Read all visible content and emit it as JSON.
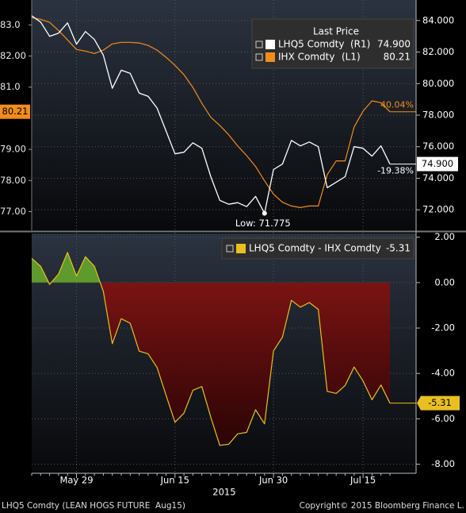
{
  "chart_data": [
    {
      "type": "line",
      "title": "Last Price",
      "categories": [
        null,
        null,
        null,
        null,
        null,
        "May 29",
        null,
        null,
        null,
        null,
        null,
        null,
        null,
        null,
        null,
        null,
        "Jun 15",
        null,
        null,
        null,
        null,
        null,
        null,
        null,
        null,
        null,
        null,
        "Jun 30",
        null,
        null,
        null,
        null,
        null,
        null,
        null,
        null,
        null,
        "Jul 15",
        null,
        null,
        null
      ],
      "series": [
        {
          "name": "LHQ5 Comdty",
          "legend_tag": "(R1)",
          "last_label": "74.900",
          "change_label": "-19.38%",
          "color": "#ffffff",
          "axis": "y2",
          "values": [
            84.3,
            83.9,
            83.0,
            83.2,
            83.85,
            82.5,
            83.3,
            82.8,
            81.8,
            79.7,
            80.85,
            80.65,
            79.4,
            79.2,
            78.45,
            77.0,
            75.55,
            75.65,
            76.25,
            75.9,
            74.1,
            72.6,
            72.35,
            72.45,
            72.2,
            72.85,
            71.775,
            74.55,
            74.9,
            76.4,
            76.05,
            76.3,
            76.0,
            73.4,
            73.75,
            74.1,
            76.0,
            75.9,
            75.4,
            76.05,
            74.9
          ]
        },
        {
          "name": "IHX Comdty",
          "legend_tag": "(L1)",
          "last_label": "80.21",
          "change_label": "40.04%",
          "color": "#f28c1c",
          "axis": "y",
          "values": [
            83.23,
            83.18,
            83.08,
            82.82,
            82.52,
            82.21,
            82.16,
            82.08,
            82.19,
            82.39,
            82.44,
            82.44,
            82.42,
            82.34,
            82.19,
            81.96,
            81.7,
            81.4,
            80.99,
            80.48,
            80.03,
            79.77,
            79.47,
            79.11,
            78.8,
            78.45,
            77.99,
            77.56,
            77.3,
            77.18,
            77.13,
            77.18,
            77.18,
            78.19,
            78.63,
            78.63,
            79.72,
            80.23,
            80.56,
            80.5,
            80.21
          ]
        }
      ],
      "low_label": "Low: 71.775",
      "ylim": [
        76.4,
        83.8
      ],
      "yticks": [
        {
          "value": 83,
          "label": "83.0"
        },
        {
          "value": 82,
          "label": "82.00"
        },
        {
          "value": 81,
          "label": "81.0"
        },
        {
          "value": 79,
          "label": "79.00"
        },
        {
          "value": 78,
          "label": "78.00"
        },
        {
          "value": 77,
          "label": "77.00"
        }
      ],
      "y2lim": [
        70.7,
        85.3
      ],
      "y2ticks": [
        {
          "value": 84,
          "label": "84.000"
        },
        {
          "value": 82,
          "label": "82.000"
        },
        {
          "value": 80,
          "label": "80.000"
        },
        {
          "value": 78,
          "label": "78.000"
        },
        {
          "value": 76,
          "label": "76.000"
        },
        {
          "value": 74,
          "label": "74.000"
        },
        {
          "value": 72,
          "label": "72.000"
        }
      ],
      "grid": true
    },
    {
      "type": "area",
      "categories": [
        null,
        null,
        null,
        null,
        null,
        "May 29",
        null,
        null,
        null,
        null,
        null,
        null,
        null,
        null,
        null,
        null,
        "Jun 15",
        null,
        null,
        null,
        null,
        null,
        null,
        null,
        null,
        null,
        null,
        "Jun 30",
        null,
        null,
        null,
        null,
        null,
        null,
        null,
        null,
        null,
        "Jul 15",
        null,
        null,
        null
      ],
      "year_label": "2015",
      "series": [
        {
          "name": "LHQ5 Comdty - IHX Comdty",
          "last_label": "-5.31",
          "color": "#e8c020",
          "positive_color": "#5e9a2c",
          "negative_color": "#8a1616",
          "values": [
            1.07,
            0.72,
            -0.08,
            0.38,
            1.33,
            0.29,
            1.14,
            0.72,
            -0.39,
            -2.69,
            -1.59,
            -1.79,
            -3.02,
            -3.14,
            -3.74,
            -4.96,
            -6.15,
            -5.75,
            -4.74,
            -4.58,
            -5.93,
            -7.17,
            -7.12,
            -6.66,
            -6.6,
            -5.6,
            -6.22,
            -3.01,
            -2.4,
            -0.78,
            -1.08,
            -0.88,
            -1.18,
            -4.79,
            -4.88,
            -4.53,
            -3.72,
            -4.33,
            -5.16,
            -4.51,
            -5.31
          ]
        }
      ],
      "ylim": [
        -8.4,
        2.2
      ],
      "yticks": [
        {
          "value": 2,
          "label": "2.00"
        },
        {
          "value": 0,
          "label": "0.00"
        },
        {
          "value": -2,
          "label": "-2.00"
        },
        {
          "value": -4,
          "label": "-4.00"
        },
        {
          "value": -6,
          "label": "-6.00"
        },
        {
          "value": -8,
          "label": "-8.00"
        }
      ],
      "grid": true
    }
  ],
  "footer": {
    "left": "LHQ5 Comdty (LEAN HOGS FUTURE  Aug15)",
    "right": "Copyright© 2015 Bloomberg Finance L."
  }
}
